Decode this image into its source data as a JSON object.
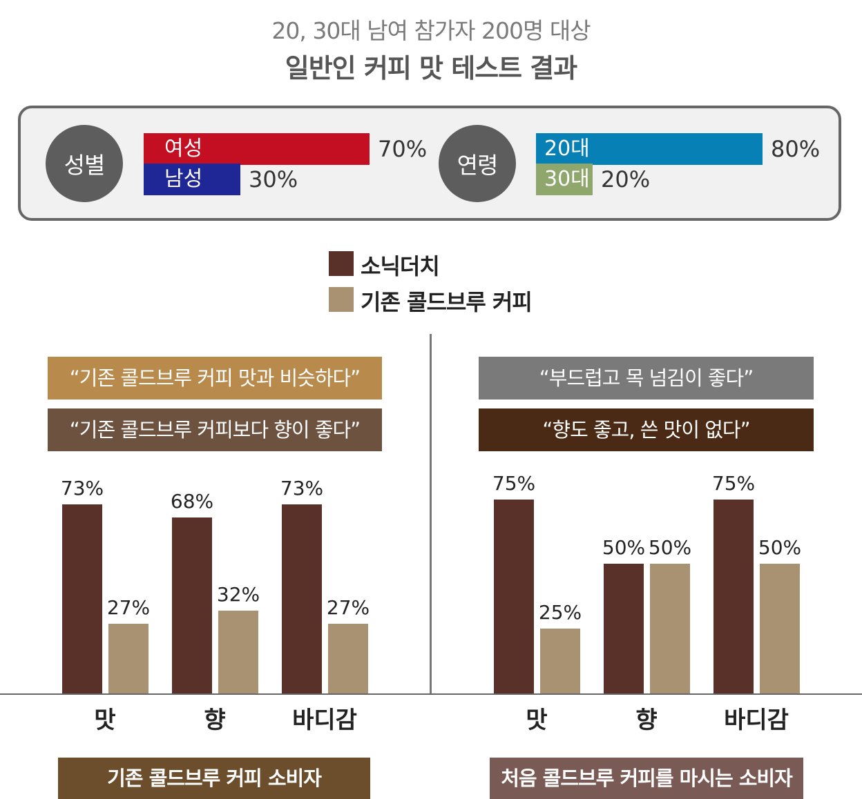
{
  "header": {
    "subtitle": "20, 30대 남여 참가자 200명 대상",
    "title": "일반인 커피 맛 테스트 결과"
  },
  "demographics": {
    "gender": {
      "label": "성별",
      "items": [
        {
          "label": "여성",
          "value": 70,
          "value_label": "70%",
          "color": "#c40e22"
        },
        {
          "label": "남성",
          "value": 30,
          "value_label": "30%",
          "color": "#1f2695"
        }
      ]
    },
    "age": {
      "label": "연령",
      "items": [
        {
          "label": "20대",
          "value": 80,
          "value_label": "80%",
          "color": "#0781b5"
        },
        {
          "label": "30대",
          "value": 20,
          "value_label": "20%",
          "color": "#8fa66d"
        }
      ]
    }
  },
  "legend": [
    {
      "label": "소닉더치",
      "color": "#5a3128"
    },
    {
      "label": "기존 콜드브루 커피",
      "color": "#a89272"
    }
  ],
  "panels": [
    {
      "quotes": [
        {
          "text": "“기존 콜드브루 커피 맛과 비슷하다”",
          "color": "#b88a4c"
        },
        {
          "text": "“기존 콜드브루 커피보다 향이 좋다”",
          "color": "#6e5240"
        }
      ],
      "footer": {
        "text": "기존 콜드브루 커피 소비자",
        "color": "#6c4e2c"
      }
    },
    {
      "quotes": [
        {
          "text": "“부드럽고 목 넘김이 좋다”",
          "color": "#7a7a7a"
        },
        {
          "text": "“향도 좋고, 쓴 맛이 없다”",
          "color": "#4a2a14"
        }
      ],
      "footer": {
        "text": "처음 콜드브루 커피를 마시는 소비자",
        "color": "#7a5a55"
      }
    }
  ],
  "chart_data": [
    {
      "type": "bar",
      "categories": [
        "맛",
        "향",
        "바디감"
      ],
      "ylim": [
        0,
        100
      ],
      "series": [
        {
          "name": "소닉더치",
          "values": [
            73,
            68,
            73
          ],
          "labels": [
            "73%",
            "68%",
            "73%"
          ],
          "color": "#5a3128"
        },
        {
          "name": "기존 콜드브루 커피",
          "values": [
            27,
            32,
            27
          ],
          "labels": [
            "27%",
            "32%",
            "27%"
          ],
          "color": "#a89272"
        }
      ]
    },
    {
      "type": "bar",
      "categories": [
        "맛",
        "향",
        "바디감"
      ],
      "ylim": [
        0,
        100
      ],
      "series": [
        {
          "name": "소닉더치",
          "values": [
            75,
            50,
            75
          ],
          "labels": [
            "75%",
            "50%",
            "75%"
          ],
          "color": "#5a3128"
        },
        {
          "name": "기존 콜드브루 커피",
          "values": [
            25,
            50,
            50
          ],
          "labels": [
            "25%",
            "50%",
            "50%"
          ],
          "color": "#a89272"
        }
      ]
    }
  ]
}
